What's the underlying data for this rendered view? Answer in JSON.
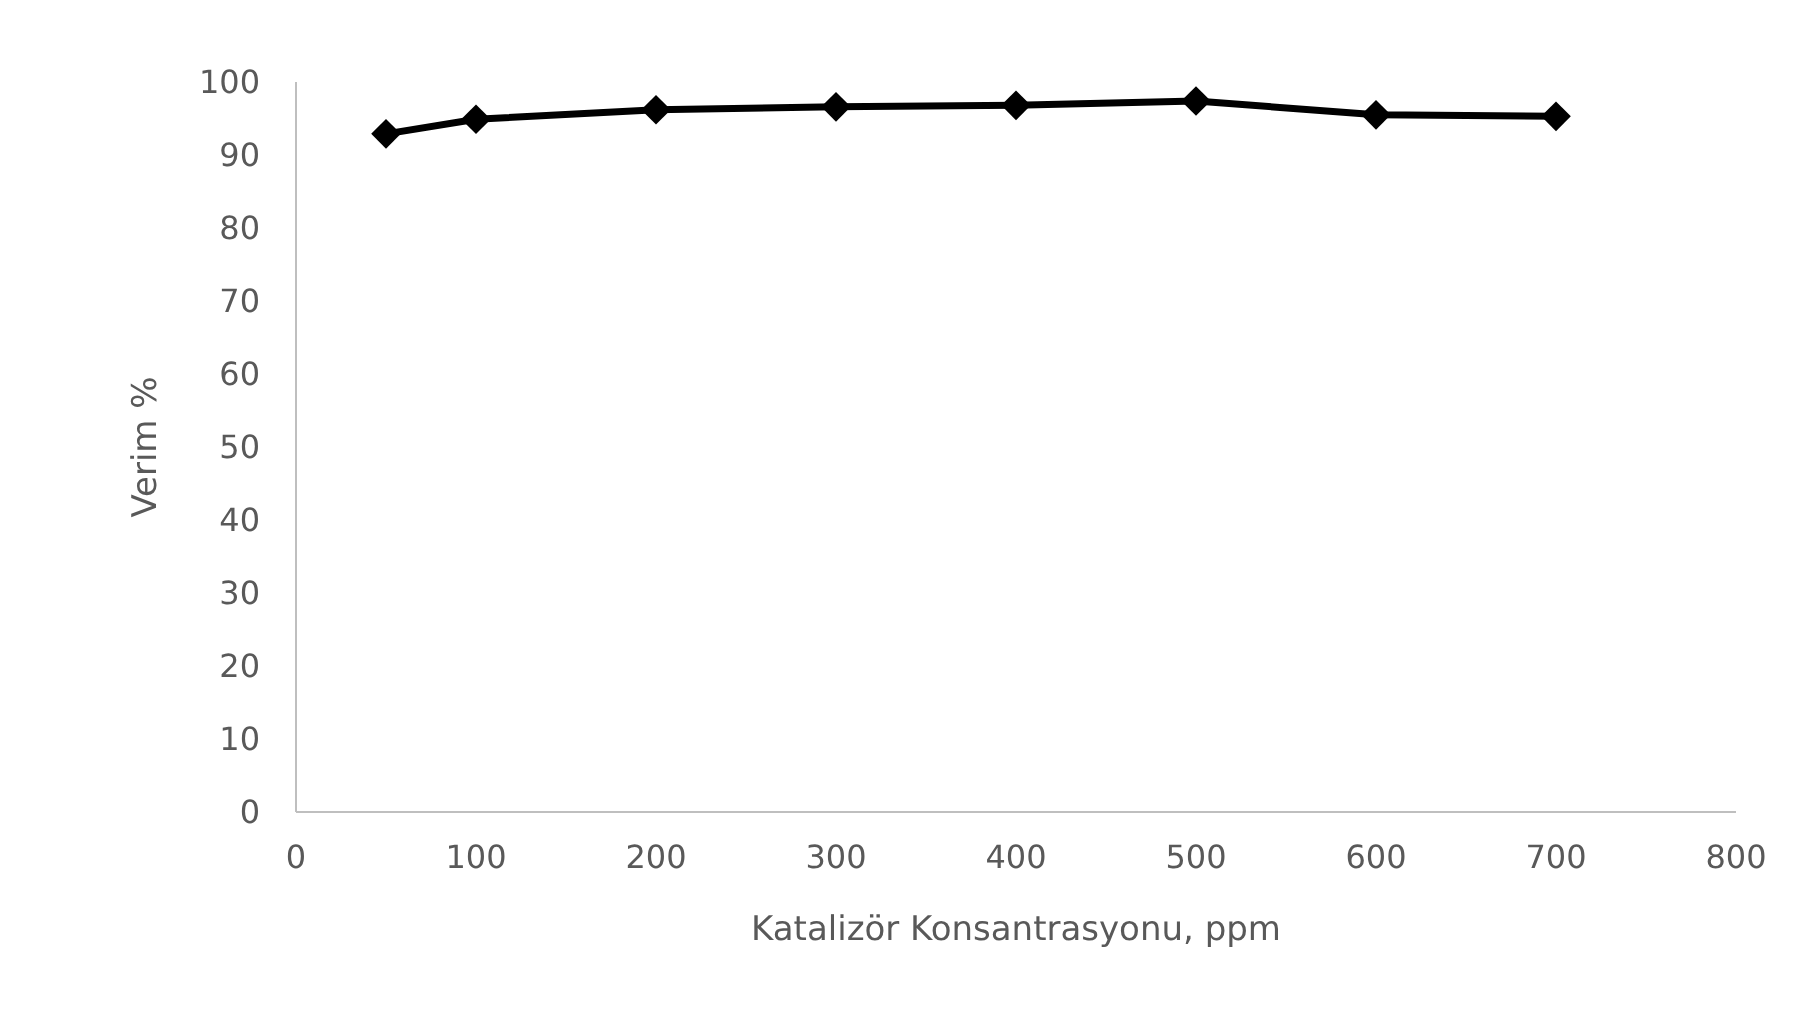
{
  "chart_data": {
    "type": "line",
    "xlabel": "Katalizör Konsantrasyonu, ppm",
    "ylabel": "Verim %",
    "x": [
      50,
      100,
      200,
      300,
      400,
      500,
      600,
      700
    ],
    "series": [
      {
        "color": "#000000",
        "values": [
          92.9,
          94.9,
          96.2,
          96.6,
          96.8,
          97.4,
          95.5,
          95.3
        ]
      }
    ],
    "xlim": [
      0,
      800
    ],
    "xticks": [
      0,
      100,
      200,
      300,
      400,
      500,
      600,
      700,
      800
    ],
    "ylim": [
      0,
      100
    ],
    "yticks": [
      0,
      10,
      20,
      30,
      40,
      50,
      60,
      70,
      80,
      90,
      100
    ],
    "marker": "diamond",
    "line_style": "solid",
    "grid": false
  }
}
